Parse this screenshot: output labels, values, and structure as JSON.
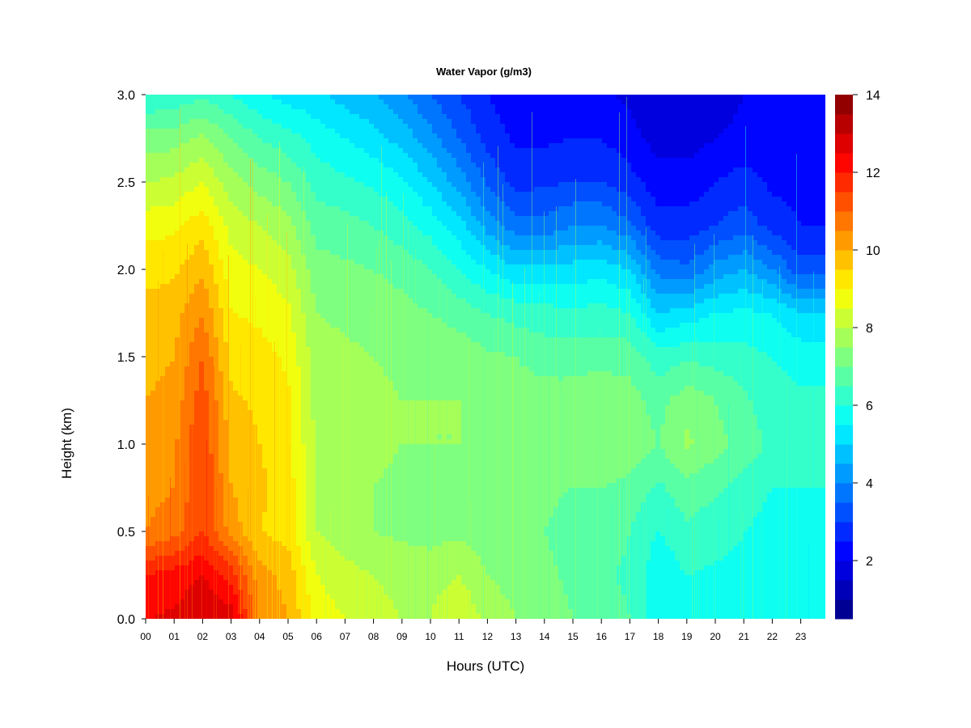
{
  "chart_data": {
    "type": "heatmap",
    "title": "Water Vapor (g/m3)",
    "xlabel": "Hours (UTC)",
    "ylabel": "Height (km)",
    "xlim": [
      0,
      23.9
    ],
    "ylim": [
      0.0,
      3.0
    ],
    "x_ticks": [
      "00",
      "01",
      "02",
      "03",
      "04",
      "05",
      "06",
      "07",
      "08",
      "09",
      "10",
      "11",
      "12",
      "13",
      "14",
      "15",
      "16",
      "17",
      "18",
      "19",
      "20",
      "21",
      "22",
      "23"
    ],
    "y_ticks": [
      "0.0",
      "0.5",
      "1.0",
      "1.5",
      "2.0",
      "2.5",
      "3.0"
    ],
    "colorbar": {
      "min": 0.5,
      "max": 14,
      "levels": 27,
      "tick_labels": [
        "2",
        "4",
        "6",
        "8",
        "10",
        "12",
        "14"
      ],
      "colors": [
        "#00007f",
        "#0000ff",
        "#007fff",
        "#00ffff",
        "#7fff7f",
        "#ffff00",
        "#ff7f00",
        "#ff0000",
        "#7f0000"
      ]
    },
    "hours": [
      0,
      1,
      2,
      3,
      4,
      5,
      6,
      7,
      8,
      9,
      10,
      11,
      12,
      13,
      14,
      15,
      16,
      17,
      18,
      19,
      20,
      21,
      22,
      23
    ],
    "heights": [
      0.0,
      0.25,
      0.5,
      0.75,
      1.0,
      1.25,
      1.5,
      1.75,
      2.0,
      2.25,
      2.5,
      2.75,
      3.0
    ],
    "values": [
      [
        12.5,
        12.6,
        13.0,
        12.8,
        10.5,
        10.0,
        8.8,
        8.5,
        8.2,
        8.0,
        8.0,
        8.5,
        7.8,
        7.5,
        7.3,
        7.0,
        6.8,
        6.5,
        5.5,
        6.0,
        6.0,
        6.0,
        5.8,
        6.0
      ],
      [
        12.0,
        12.2,
        12.5,
        11.8,
        10.2,
        9.8,
        8.5,
        8.2,
        8.0,
        7.8,
        7.8,
        8.0,
        7.5,
        7.3,
        7.1,
        6.9,
        6.6,
        6.4,
        5.6,
        6.0,
        5.9,
        5.9,
        5.7,
        6.0
      ],
      [
        10.5,
        10.8,
        11.5,
        10.3,
        9.5,
        9.3,
        8.0,
        7.7,
        7.5,
        7.4,
        7.3,
        7.4,
        7.2,
        7.0,
        7.0,
        6.8,
        6.8,
        6.5,
        6.0,
        6.4,
        6.2,
        6.0,
        5.8,
        5.9
      ],
      [
        10.3,
        10.5,
        11.5,
        10.0,
        9.6,
        9.3,
        7.9,
        7.7,
        7.5,
        7.4,
        7.4,
        7.4,
        7.3,
        7.1,
        7.1,
        7.0,
        7.0,
        6.8,
        6.4,
        6.8,
        6.6,
        6.3,
        6.0,
        6.0
      ],
      [
        10.2,
        10.4,
        11.5,
        9.8,
        9.5,
        9.2,
        7.9,
        7.8,
        7.6,
        7.5,
        7.5,
        7.5,
        7.4,
        7.2,
        7.2,
        7.3,
        7.5,
        7.4,
        7.0,
        7.6,
        7.2,
        6.8,
        6.4,
        6.3
      ],
      [
        10.0,
        10.2,
        11.3,
        9.6,
        9.4,
        9.1,
        7.8,
        7.7,
        7.6,
        7.5,
        7.5,
        7.5,
        7.4,
        7.2,
        7.2,
        7.2,
        7.4,
        7.2,
        6.8,
        7.3,
        7.0,
        6.6,
        6.2,
        6.1
      ],
      [
        9.8,
        10.0,
        11.0,
        9.3,
        9.2,
        8.9,
        7.7,
        7.6,
        7.5,
        7.4,
        7.4,
        7.3,
        7.1,
        7.0,
        6.8,
        6.8,
        6.8,
        6.8,
        6.2,
        6.4,
        6.3,
        6.2,
        6.0,
        5.8
      ],
      [
        9.7,
        9.8,
        10.5,
        9.0,
        8.9,
        8.6,
        7.5,
        7.4,
        7.3,
        7.2,
        7.0,
        6.8,
        6.5,
        6.3,
        6.2,
        6.1,
        6.2,
        6.0,
        5.0,
        5.2,
        5.5,
        5.6,
        5.5,
        5.0
      ],
      [
        9.3,
        9.4,
        9.9,
        8.7,
        8.5,
        8.2,
        7.2,
        7.1,
        7.0,
        6.8,
        6.5,
        6.0,
        5.5,
        5.1,
        5.1,
        5.2,
        5.3,
        5.0,
        3.8,
        3.6,
        4.2,
        4.5,
        4.0,
        3.2
      ],
      [
        8.8,
        8.9,
        9.3,
        8.3,
        8.0,
        7.7,
        6.8,
        6.7,
        6.5,
        6.2,
        5.8,
        5.2,
        4.3,
        3.7,
        3.7,
        4.0,
        4.0,
        3.6,
        2.7,
        2.7,
        3.0,
        3.3,
        2.8,
        2.5
      ],
      [
        8.0,
        8.1,
        8.5,
        7.7,
        7.3,
        7.0,
        6.3,
        6.1,
        5.9,
        5.6,
        5.0,
        4.3,
        3.4,
        2.8,
        2.9,
        3.0,
        3.0,
        2.7,
        2.2,
        2.2,
        2.5,
        2.7,
        2.4,
        2.3
      ],
      [
        7.2,
        7.3,
        7.6,
        7.0,
        6.5,
        6.2,
        5.8,
        5.5,
        5.2,
        4.8,
        4.2,
        3.5,
        2.8,
        2.4,
        2.4,
        2.5,
        2.5,
        2.2,
        1.8,
        1.8,
        2.0,
        2.2,
        2.2,
        2.2
      ],
      [
        6.0,
        6.1,
        6.4,
        6.0,
        5.6,
        5.3,
        5.1,
        4.8,
        4.5,
        4.1,
        3.5,
        3.0,
        2.5,
        2.2,
        2.2,
        2.2,
        2.1,
        1.9,
        1.5,
        1.5,
        1.6,
        2.0,
        2.0,
        2.1
      ]
    ]
  }
}
